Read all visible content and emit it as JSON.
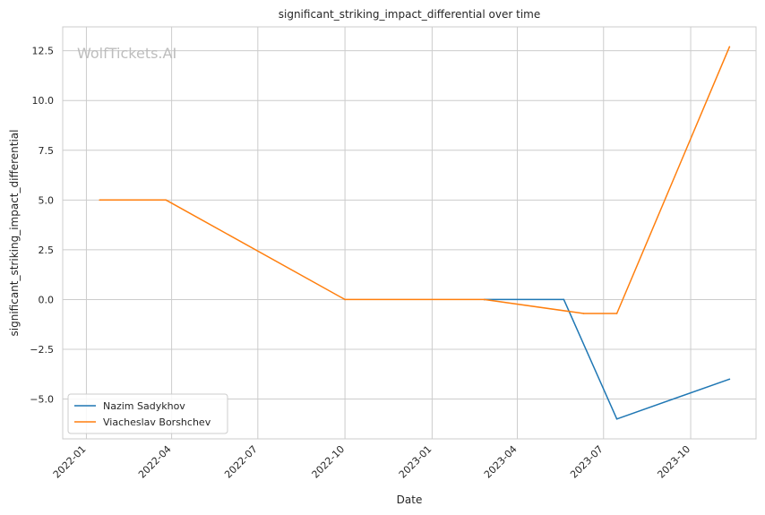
{
  "chart_data": {
    "type": "line",
    "title": "significant_striking_impact_differential over time",
    "xlabel": "Date",
    "ylabel": "significant_striking_impact_differential",
    "watermark": "WolfTickets.AI",
    "x_ticks": [
      "2022-01",
      "2022-04",
      "2022-07",
      "2022-10",
      "2023-01",
      "2023-04",
      "2023-07",
      "2023-10"
    ],
    "y_ticks": [
      "−5.0",
      "−2.5",
      "0.0",
      "2.5",
      "5.0",
      "7.5",
      "10.0",
      "12.5"
    ],
    "y_tick_values": [
      -5.0,
      -2.5,
      0.0,
      2.5,
      5.0,
      7.5,
      10.0,
      12.5
    ],
    "xlim": [
      "2021-12-07",
      "2023-12-09"
    ],
    "ylim": [
      -7.0,
      13.7
    ],
    "grid": true,
    "legend_position": "lower-left",
    "series": [
      {
        "name": "Nazim Sadykhov",
        "color": "#1f77b4",
        "points": [
          {
            "x": "2023-02-25",
            "y": 0.0
          },
          {
            "x": "2023-05-20",
            "y": 0.0
          },
          {
            "x": "2023-07-15",
            "y": -6.0
          },
          {
            "x": "2023-11-11",
            "y": -4.0
          }
        ]
      },
      {
        "name": "Viacheslav Borshchev",
        "color": "#ff7f0e",
        "points": [
          {
            "x": "2022-01-15",
            "y": 5.0
          },
          {
            "x": "2022-03-26",
            "y": 5.0
          },
          {
            "x": "2022-10-01",
            "y": 0.0
          },
          {
            "x": "2023-02-25",
            "y": 0.0
          },
          {
            "x": "2023-06-10",
            "y": -0.7
          },
          {
            "x": "2023-07-15",
            "y": -0.7
          },
          {
            "x": "2023-11-11",
            "y": 12.7
          }
        ]
      }
    ]
  }
}
